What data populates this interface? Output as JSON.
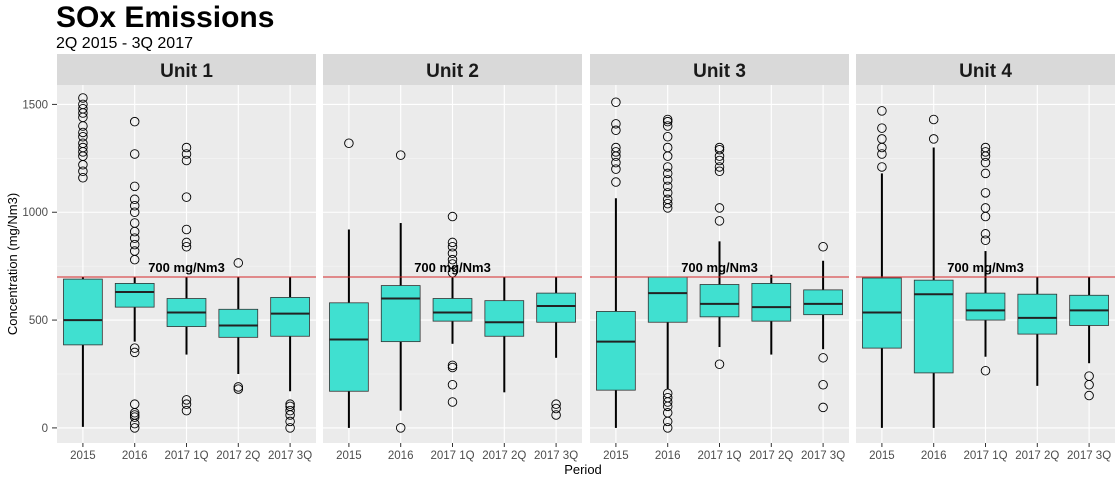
{
  "chart_data": {
    "type": "boxplot",
    "title": "SOx Emissions",
    "subtitle": "2Q 2015 - 3Q 2017",
    "xlabel": "Period",
    "ylabel": "Concentration (mg/Nm3)",
    "ylim": [
      -70,
      1590
    ],
    "yticks": [
      0,
      500,
      1000,
      1500
    ],
    "categories": [
      "2015",
      "2016",
      "2017 1Q",
      "2017 2Q",
      "2017 3Q"
    ],
    "reference_line": {
      "value": 700,
      "label": "700 mg/Nm3",
      "color": "#d62728"
    },
    "box_color": "#40e0d0",
    "grid": true,
    "facets": [
      {
        "name": "Unit 1",
        "boxes": [
          {
            "min": 5,
            "q1": 385,
            "median": 500,
            "q3": 690,
            "max": 700,
            "outliers": [
              1160,
              1190,
              1220,
              1260,
              1280,
              1300,
              1320,
              1350,
              1370,
              1400,
              1440,
              1460,
              1480,
              1500,
              1530
            ]
          },
          {
            "min": 400,
            "q1": 560,
            "median": 630,
            "q3": 670,
            "max": 700,
            "outliers": [
              0,
              20,
              50,
              60,
              70,
              110,
              350,
              370,
              780,
              820,
              850,
              880,
              910,
              950,
              1000,
              1030,
              1060,
              1120,
              1270,
              1420
            ]
          },
          {
            "min": 340,
            "q1": 470,
            "median": 535,
            "q3": 600,
            "max": 700,
            "outliers": [
              80,
              110,
              130,
              840,
              860,
              920,
              1070,
              1240,
              1270,
              1300
            ]
          },
          {
            "min": 250,
            "q1": 420,
            "median": 475,
            "q3": 550,
            "max": 700,
            "outliers": [
              180,
              190,
              765
            ]
          },
          {
            "min": 170,
            "q1": 425,
            "median": 530,
            "q3": 605,
            "max": 700,
            "outliers": [
              0,
              30,
              60,
              80,
              100,
              110
            ]
          }
        ]
      },
      {
        "name": "Unit 2",
        "boxes": [
          {
            "min": 0,
            "q1": 170,
            "median": 410,
            "q3": 580,
            "max": 920,
            "outliers": [
              1320
            ]
          },
          {
            "min": 80,
            "q1": 400,
            "median": 600,
            "q3": 660,
            "max": 950,
            "outliers": [
              0,
              1265
            ]
          },
          {
            "min": 390,
            "q1": 495,
            "median": 535,
            "q3": 600,
            "max": 700,
            "outliers": [
              120,
              200,
              280,
              290,
              720,
              760,
              780,
              810,
              840,
              860,
              980
            ]
          },
          {
            "min": 165,
            "q1": 425,
            "median": 490,
            "q3": 590,
            "max": 700,
            "outliers": []
          },
          {
            "min": 325,
            "q1": 490,
            "median": 565,
            "q3": 625,
            "max": 700,
            "outliers": [
              60,
              90,
              110
            ]
          }
        ]
      },
      {
        "name": "Unit 3",
        "boxes": [
          {
            "min": 0,
            "q1": 175,
            "median": 400,
            "q3": 540,
            "max": 1065,
            "outliers": [
              1140,
              1200,
              1230,
              1260,
              1280,
              1300,
              1380,
              1410,
              1510
            ]
          },
          {
            "min": 180,
            "q1": 490,
            "median": 625,
            "q3": 700,
            "max": 700,
            "outliers": [
              0,
              30,
              70,
              100,
              120,
              140,
              160,
              1020,
              1040,
              1060,
              1090,
              1120,
              1150,
              1180,
              1210,
              1260,
              1300,
              1350,
              1400,
              1420,
              1430
            ]
          },
          {
            "min": 375,
            "q1": 515,
            "median": 575,
            "q3": 665,
            "max": 865,
            "outliers": [
              295,
              960,
              1020,
              1190,
              1210,
              1240,
              1260,
              1290,
              1300
            ]
          },
          {
            "min": 340,
            "q1": 495,
            "median": 560,
            "q3": 670,
            "max": 710,
            "outliers": []
          },
          {
            "min": 365,
            "q1": 525,
            "median": 575,
            "q3": 640,
            "max": 775,
            "outliers": [
              95,
              200,
              325,
              840
            ]
          }
        ]
      },
      {
        "name": "Unit 4",
        "boxes": [
          {
            "min": 0,
            "q1": 370,
            "median": 535,
            "q3": 695,
            "max": 1180,
            "outliers": [
              1210,
              1270,
              1300,
              1340,
              1390,
              1470
            ]
          },
          {
            "min": 0,
            "q1": 255,
            "median": 620,
            "q3": 685,
            "max": 1300,
            "outliers": [
              1340,
              1430
            ]
          },
          {
            "min": 330,
            "q1": 500,
            "median": 545,
            "q3": 625,
            "max": 820,
            "outliers": [
              265,
              870,
              900,
              980,
              1020,
              1090,
              1180,
              1230,
              1260,
              1280,
              1300
            ]
          },
          {
            "min": 195,
            "q1": 435,
            "median": 510,
            "q3": 620,
            "max": 700,
            "outliers": []
          },
          {
            "min": 300,
            "q1": 475,
            "median": 545,
            "q3": 615,
            "max": 700,
            "outliers": [
              150,
              200,
              240
            ]
          }
        ]
      }
    ]
  }
}
